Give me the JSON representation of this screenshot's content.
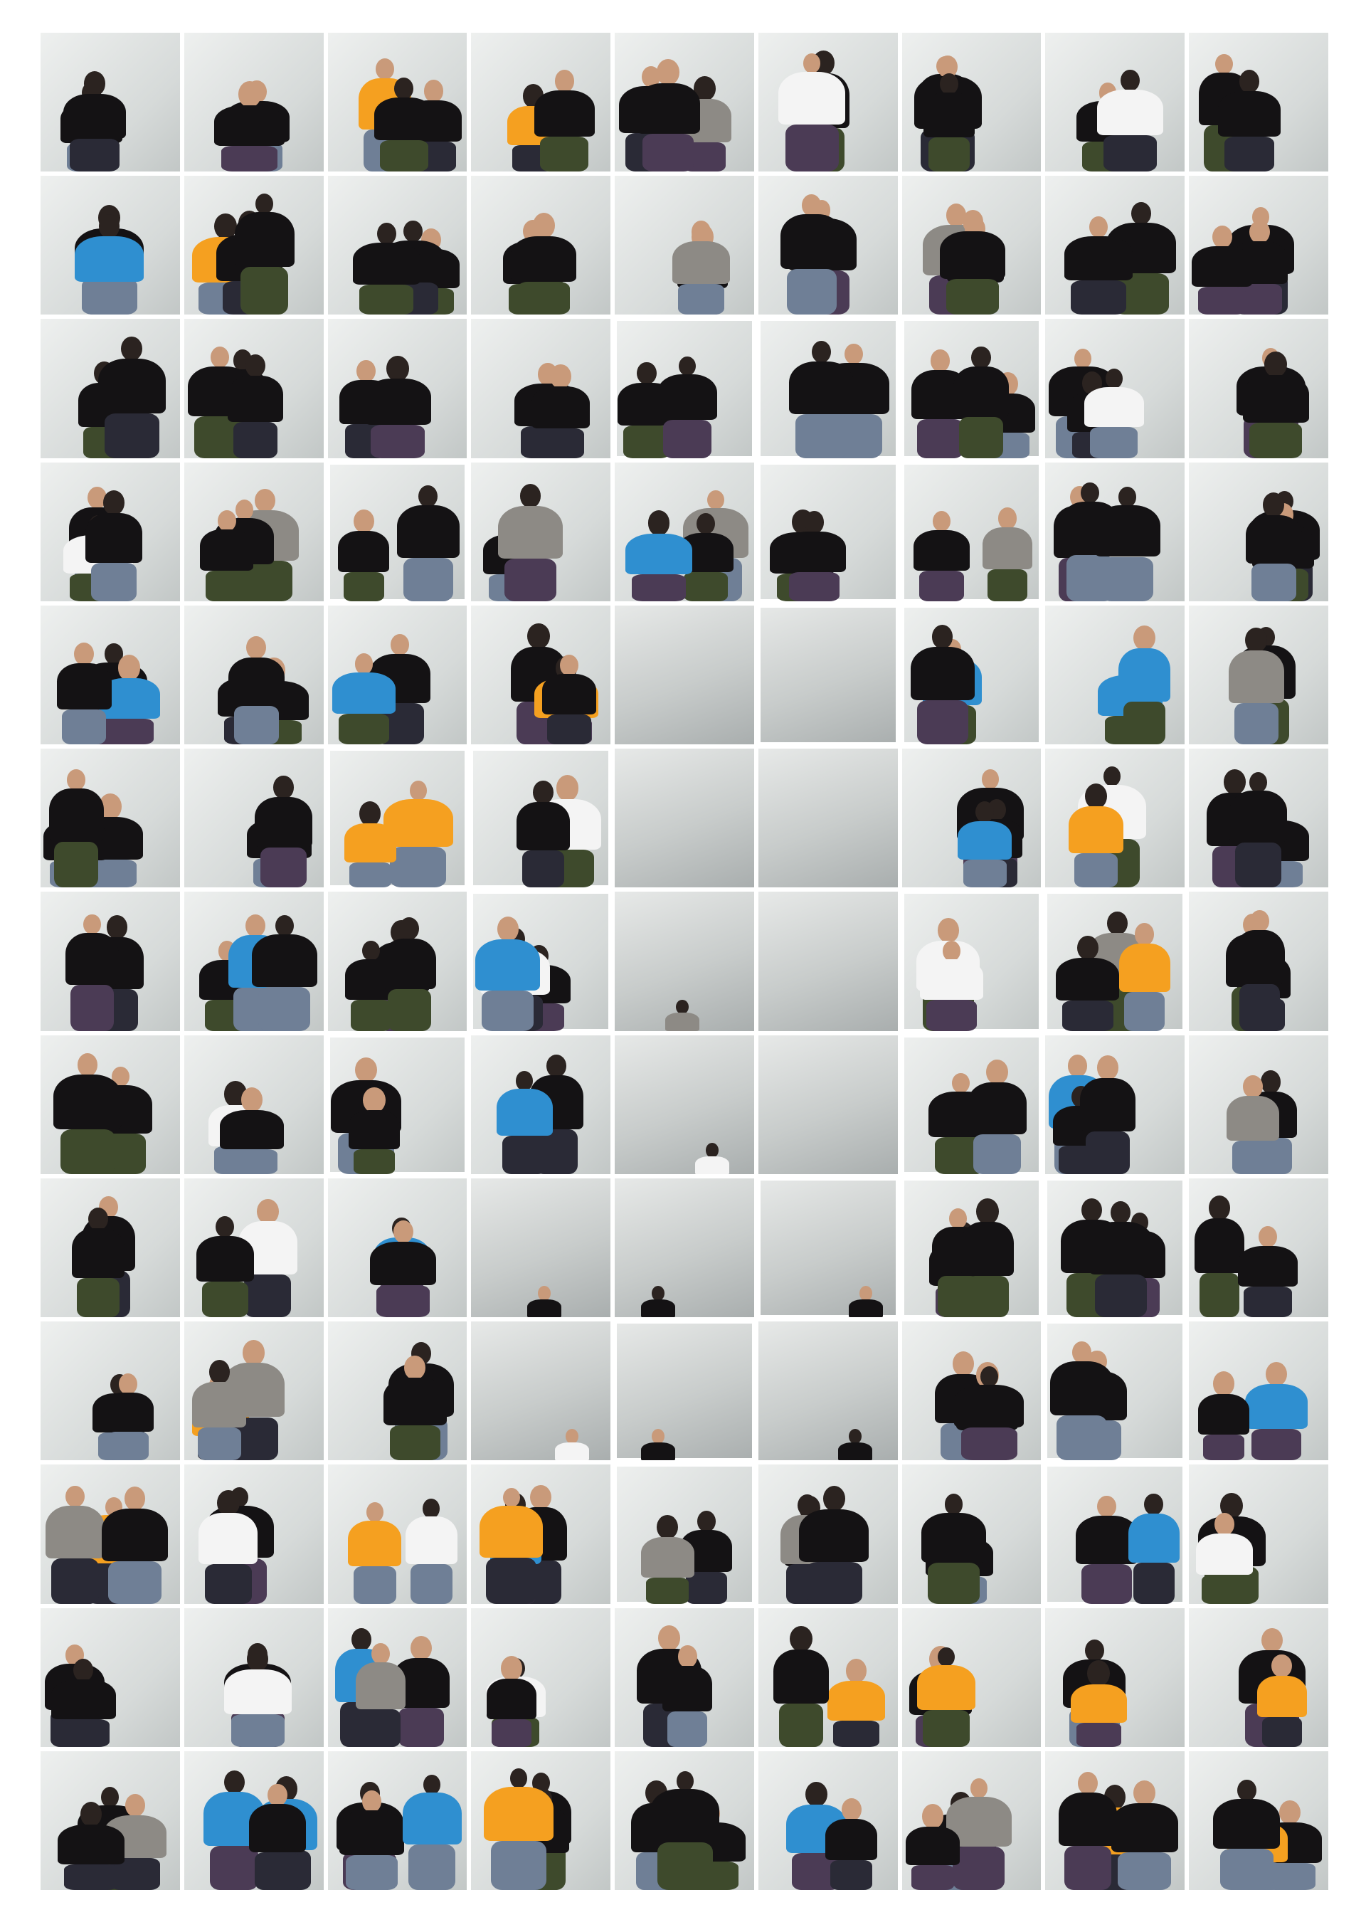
{
  "grid": {
    "rows": 13,
    "cols": 9
  },
  "empty_frames": [
    [
      4,
      4
    ],
    [
      4,
      5
    ],
    [
      5,
      4
    ],
    [
      5,
      5
    ],
    [
      6,
      5
    ],
    [
      7,
      5
    ]
  ],
  "sparse_frames": [
    [
      6,
      4
    ],
    [
      7,
      4
    ],
    [
      8,
      3
    ],
    [
      8,
      4
    ],
    [
      8,
      5
    ],
    [
      9,
      3
    ],
    [
      9,
      4
    ],
    [
      9,
      5
    ]
  ],
  "shirt_colors": {
    "black": "#141214",
    "orange": "#f5a020",
    "blue": "#2f8fd0",
    "white": "#f4f4f4",
    "grey": "#8d8a85"
  },
  "pant_colors": [
    "#3e4a2c",
    "#2a2a36",
    "#4b3b55",
    "#6f7f96"
  ]
}
